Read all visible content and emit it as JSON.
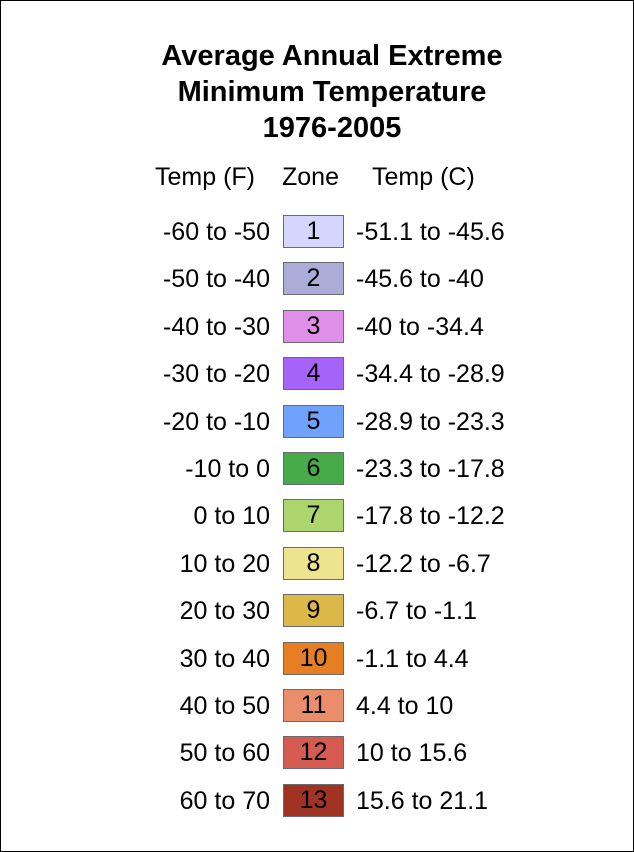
{
  "title_lines": [
    "Average Annual Extreme",
    "Minimum Temperature",
    "1976-2005"
  ],
  "headers": {
    "temp_f": "Temp (F)",
    "zone": "Zone",
    "temp_c": "Temp (C)"
  },
  "zones": [
    {
      "f": "-60 to -50",
      "zone": "1",
      "c": "-51.1 to -45.6",
      "color": "#d6d6fd"
    },
    {
      "f": "-50 to -40",
      "zone": "2",
      "c": "-45.6 to -40",
      "color": "#acacd9"
    },
    {
      "f": "-40 to -30",
      "zone": "3",
      "c": "-40 to -34.4",
      "color": "#df8fe8"
    },
    {
      "f": "-30 to -20",
      "zone": "4",
      "c": "-34.4 to -28.9",
      "color": "#a663f9"
    },
    {
      "f": "-20 to -10",
      "zone": "5",
      "c": "-28.9 to -23.3",
      "color": "#70a2fb"
    },
    {
      "f": "-10 to 0",
      "zone": "6",
      "c": "-23.3 to -17.8",
      "color": "#48ab4a"
    },
    {
      "f": "0 to 10",
      "zone": "7",
      "c": "-17.8 to -12.2",
      "color": "#acd66d"
    },
    {
      "f": "10 to 20",
      "zone": "8",
      "c": "-12.2 to -6.7",
      "color": "#eee38e"
    },
    {
      "f": "20 to 30",
      "zone": "9",
      "c": "-6.7 to -1.1",
      "color": "#dcb848"
    },
    {
      "f": "30 to 40",
      "zone": "10",
      "c": "-1.1 to 4.4",
      "color": "#e67f24"
    },
    {
      "f": "40 to 50",
      "zone": "11",
      "c": "4.4 to 10",
      "color": "#e98d6b"
    },
    {
      "f": "50 to 60",
      "zone": "12",
      "c": "10 to 15.6",
      "color": "#d55a4f"
    },
    {
      "f": "60 to 70",
      "zone": "13",
      "c": "15.6 to 21.1",
      "color": "#a13322"
    }
  ]
}
